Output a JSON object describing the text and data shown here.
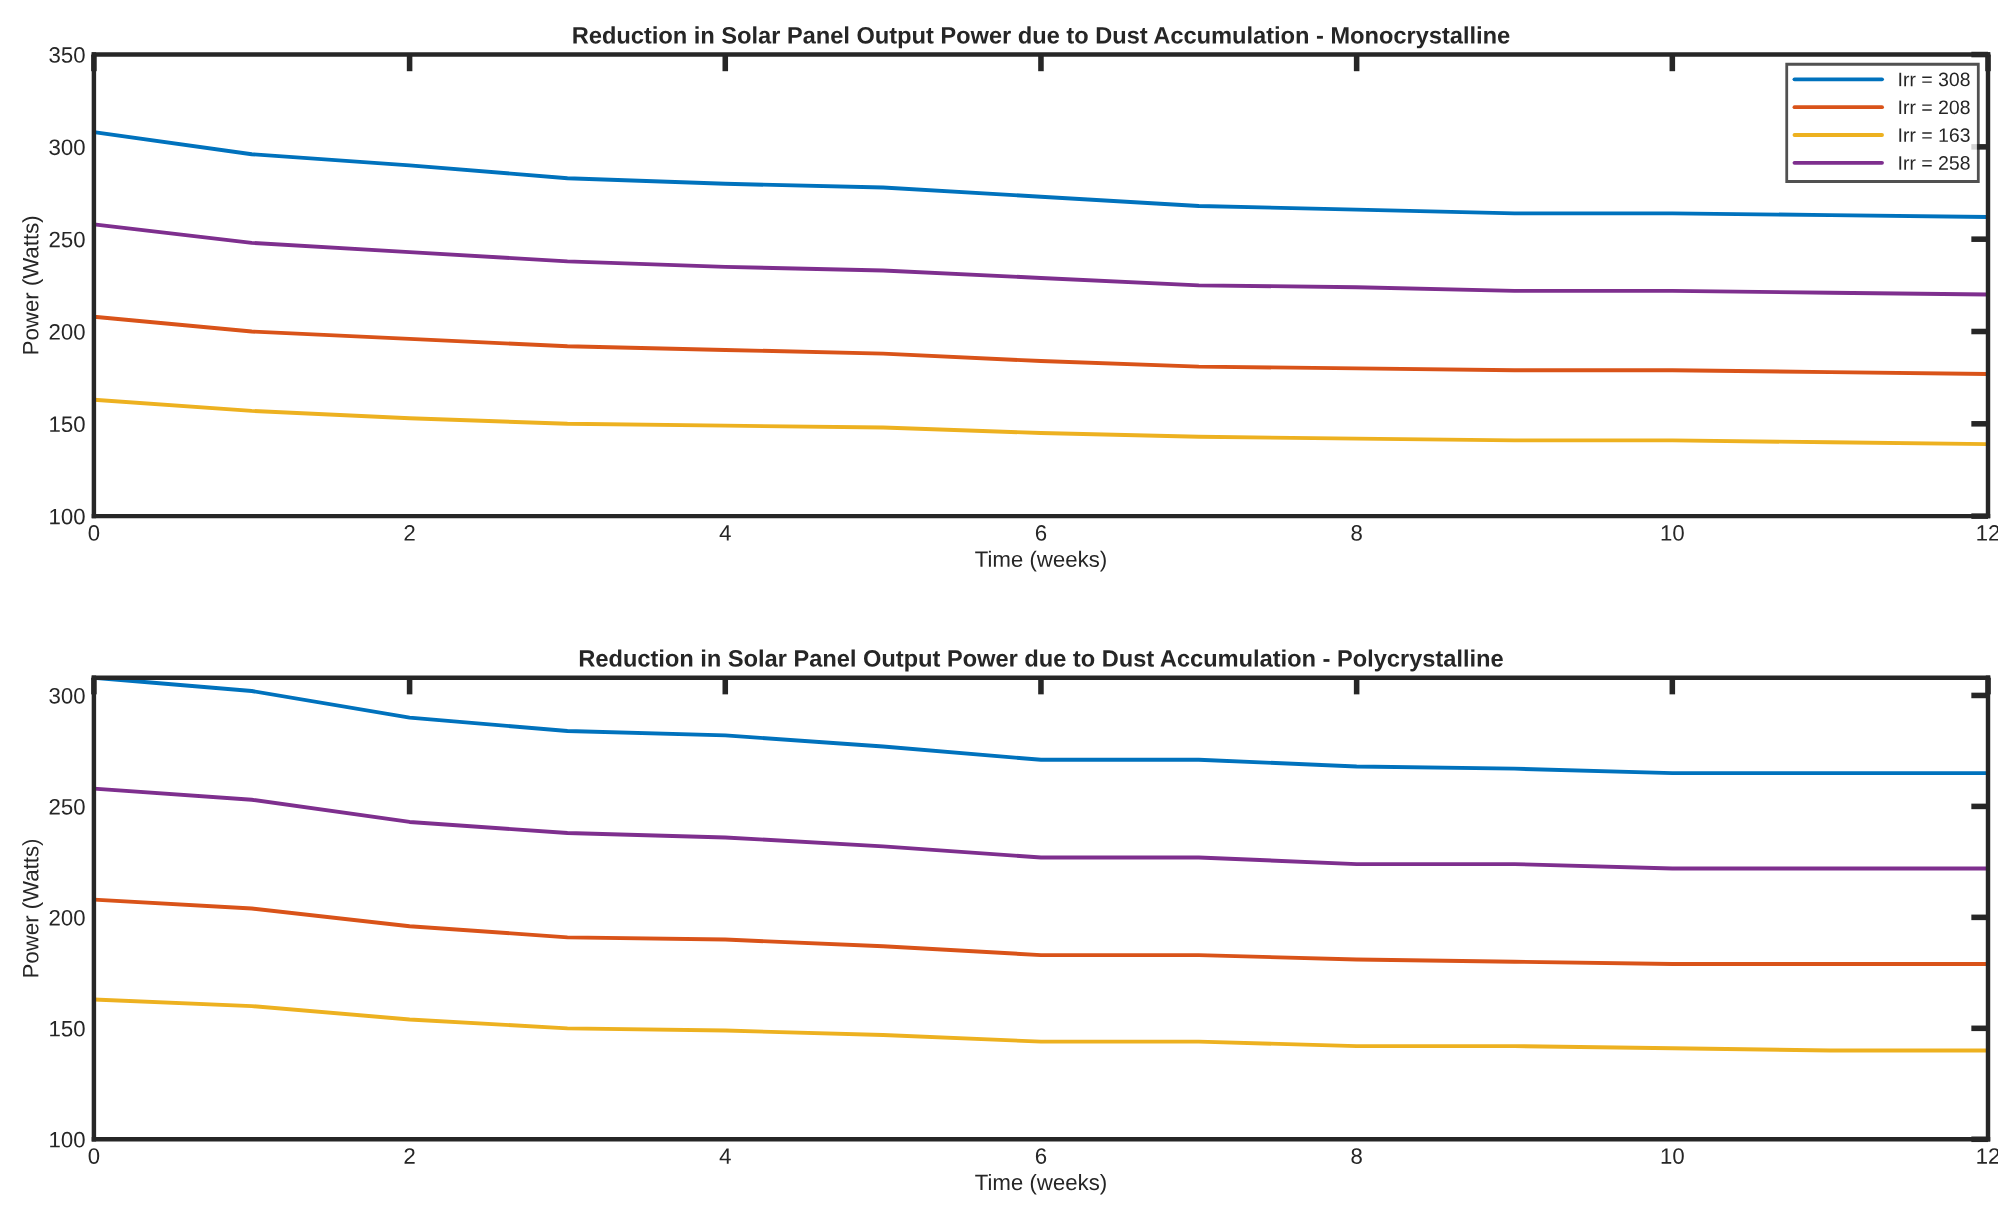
{
  "chart_data": [
    {
      "type": "line",
      "title": "Reduction in Solar Panel Output Power due to Dust Accumulation - Monocrystalline",
      "xlabel": "Time (weeks)",
      "ylabel": "Power (Watts)",
      "x": [
        0,
        1,
        2,
        3,
        4,
        5,
        6,
        7,
        8,
        9,
        10,
        11,
        12
      ],
      "xlim": [
        0,
        12
      ],
      "xticks": [
        0,
        2,
        4,
        6,
        8,
        10,
        12
      ],
      "ylim": [
        100,
        350
      ],
      "yticks": [
        100,
        150,
        200,
        250,
        300,
        350
      ],
      "grid": false,
      "legend": "top right",
      "series": [
        {
          "name": "Irr = 308",
          "color": "#0072bd",
          "values": [
            308,
            296,
            290,
            283,
            280,
            278,
            273,
            268,
            266,
            264,
            264,
            263,
            262
          ]
        },
        {
          "name": "Irr = 208",
          "color": "#d95319",
          "values": [
            208,
            200,
            196,
            192,
            190,
            188,
            184,
            181,
            180,
            179,
            179,
            178,
            177
          ]
        },
        {
          "name": "Irr = 163",
          "color": "#edb120",
          "values": [
            163,
            157,
            153,
            150,
            149,
            148,
            145,
            143,
            142,
            141,
            141,
            140,
            139
          ]
        },
        {
          "name": "Irr = 258",
          "color": "#7e2f8e",
          "values": [
            258,
            248,
            243,
            238,
            235,
            233,
            229,
            225,
            224,
            222,
            222,
            221,
            220
          ]
        }
      ]
    },
    {
      "type": "line",
      "title": "Reduction in Solar Panel Output Power due to Dust Accumulation - Polycrystalline",
      "xlabel": "Time (weeks)",
      "ylabel": "Power (Watts)",
      "x": [
        0,
        1,
        2,
        3,
        4,
        5,
        6,
        7,
        8,
        9,
        10,
        11,
        12
      ],
      "xlim": [
        0,
        12
      ],
      "xticks": [
        0,
        2,
        4,
        6,
        8,
        10,
        12
      ],
      "ylim": [
        100,
        308
      ],
      "yticks": [
        100,
        150,
        200,
        250,
        300
      ],
      "grid": false,
      "series": [
        {
          "color": "#0072bd",
          "values": [
            308,
            302,
            290,
            284,
            282,
            277,
            271,
            271,
            268,
            267,
            265,
            265,
            265
          ]
        },
        {
          "color": "#d95319",
          "values": [
            208,
            204,
            196,
            191,
            190,
            187,
            183,
            183,
            181,
            180,
            179,
            179,
            179
          ]
        },
        {
          "color": "#edb120",
          "values": [
            163,
            160,
            154,
            150,
            149,
            147,
            144,
            144,
            142,
            142,
            141,
            140,
            140
          ]
        },
        {
          "color": "#7e2f8e",
          "values": [
            258,
            253,
            243,
            238,
            236,
            232,
            227,
            227,
            224,
            224,
            222,
            222,
            222
          ]
        }
      ]
    }
  ]
}
